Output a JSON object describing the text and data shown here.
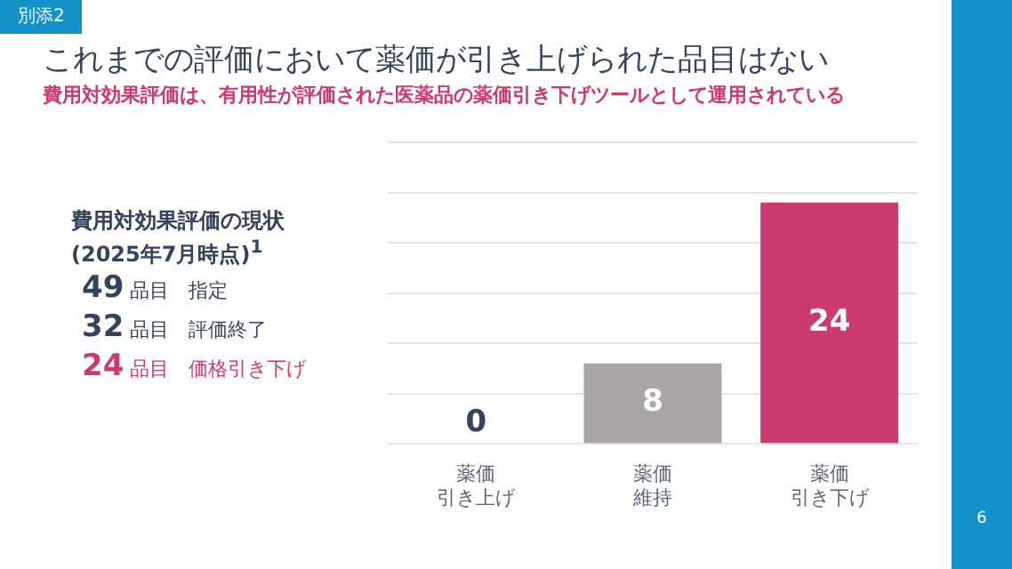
{
  "chart_data": {
    "type": "bar",
    "title": "これまでの評価において薬価が引き上げられた品目はない",
    "subtitle": "費用対効果評価は、有用性が評価された医薬品の薬価引き下げツールとして運用されている",
    "categories": [
      "薬価引き上げ",
      "薬価維持",
      "薬価引き下げ"
    ],
    "values": [
      0,
      8,
      24
    ],
    "colors": [
      "#34435e",
      "#a9a5a5",
      "#cc3a72"
    ],
    "data_labels": true,
    "ylim": [
      0,
      30
    ],
    "yticks": [
      {
        "value": 0,
        "label": null
      },
      {
        "value": 5,
        "label": null
      },
      {
        "value": 10,
        "label": null
      },
      {
        "value": 15,
        "label": null
      },
      {
        "value": 20,
        "label": null
      },
      {
        "value": 25,
        "label": null
      },
      {
        "value": 30,
        "label": null
      }
    ],
    "tick_labels": "x",
    "grid": "y",
    "legend": false,
    "annotations": [
      "別添2",
      "費用対効果評価の現状",
      "(2025年7月時点)$^{1}$",
      "49 品目 指定",
      "32 品目 評価終了",
      "24 品目 価格引き下げ",
      "6"
    ]
  }
}
